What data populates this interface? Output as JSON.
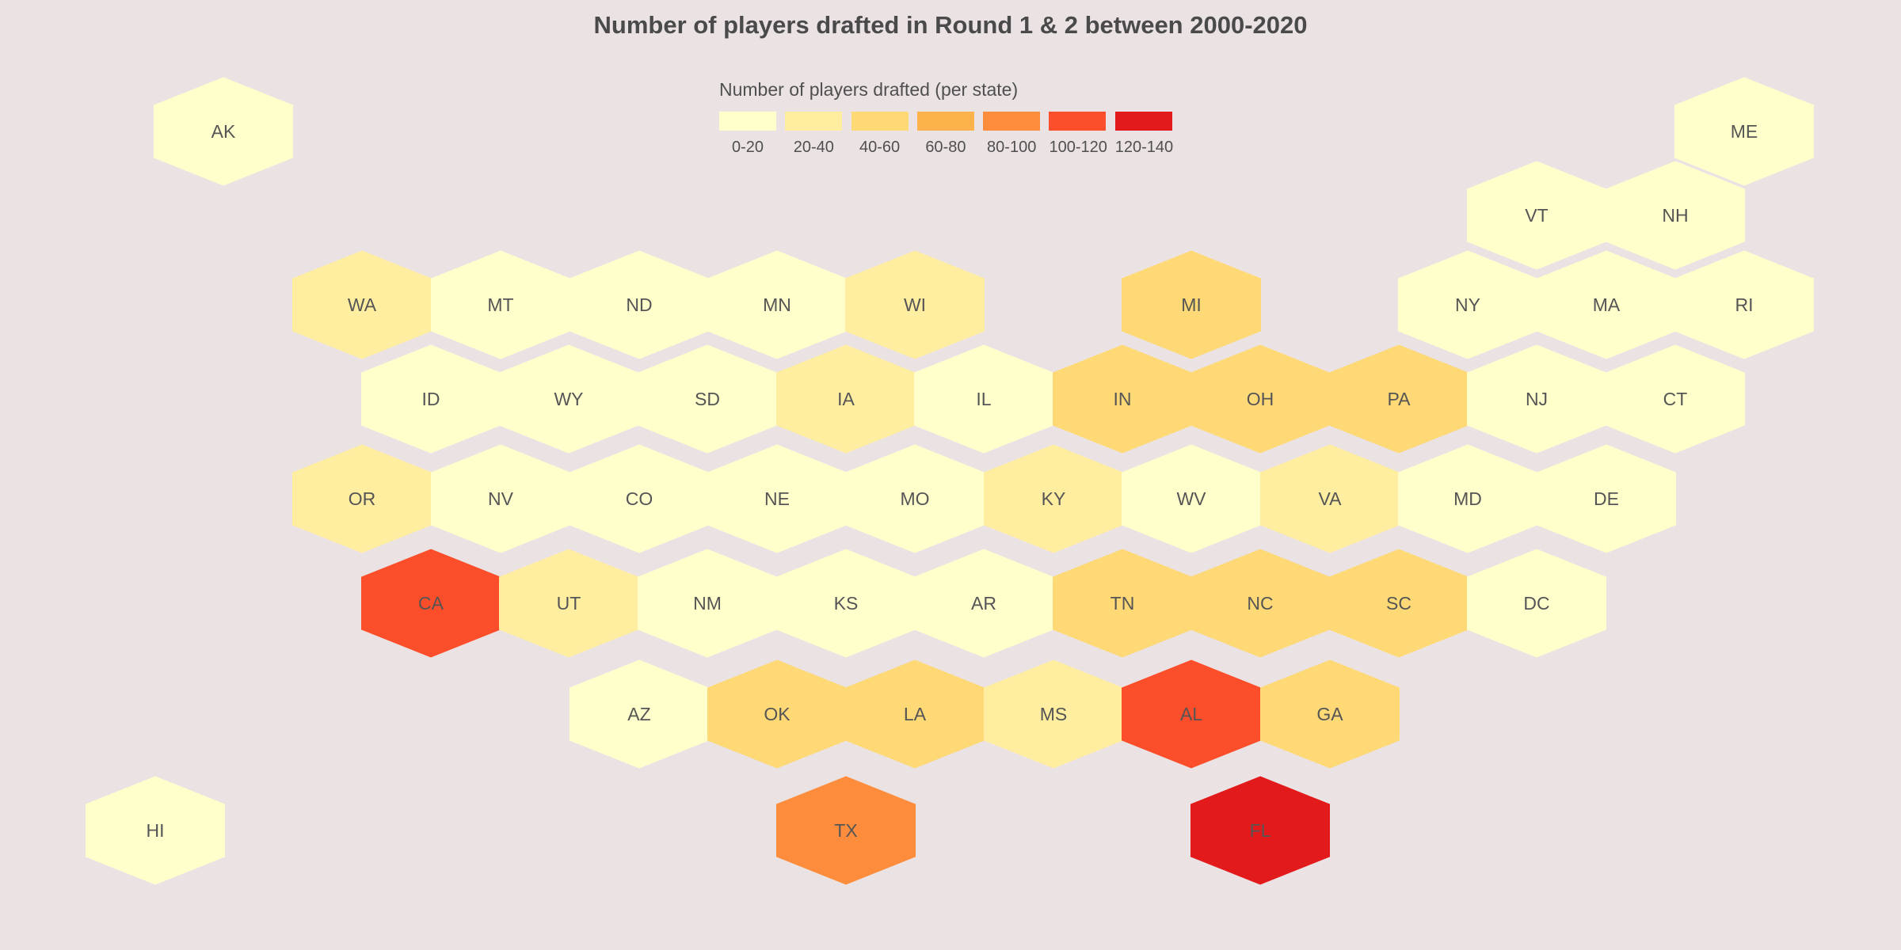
{
  "title": "Number of players drafted in Round 1 & 2 between 2000-2020",
  "legend": {
    "title": "Number of players drafted (per state)",
    "bins": [
      {
        "label": "0-20",
        "color": "#ffffcc"
      },
      {
        "label": "20-40",
        "color": "#ffeda0"
      },
      {
        "label": "40-60",
        "color": "#fed976"
      },
      {
        "label": "60-80",
        "color": "#feb24c"
      },
      {
        "label": "80-100",
        "color": "#fd8d3c"
      },
      {
        "label": "100-120",
        "color": "#fc4e2a"
      },
      {
        "label": "120-140",
        "color": "#e31a1c"
      }
    ]
  },
  "states": [
    {
      "abbr": "AK",
      "bin": 0
    },
    {
      "abbr": "ME",
      "bin": 0
    },
    {
      "abbr": "VT",
      "bin": 0
    },
    {
      "abbr": "NH",
      "bin": 0
    },
    {
      "abbr": "WA",
      "bin": 1
    },
    {
      "abbr": "MT",
      "bin": 0
    },
    {
      "abbr": "ND",
      "bin": 0
    },
    {
      "abbr": "MN",
      "bin": 0
    },
    {
      "abbr": "WI",
      "bin": 1
    },
    {
      "abbr": "MI",
      "bin": 2
    },
    {
      "abbr": "NY",
      "bin": 0
    },
    {
      "abbr": "MA",
      "bin": 0
    },
    {
      "abbr": "RI",
      "bin": 0
    },
    {
      "abbr": "ID",
      "bin": 0
    },
    {
      "abbr": "WY",
      "bin": 0
    },
    {
      "abbr": "SD",
      "bin": 0
    },
    {
      "abbr": "IA",
      "bin": 1
    },
    {
      "abbr": "IL",
      "bin": 0
    },
    {
      "abbr": "IN",
      "bin": 2
    },
    {
      "abbr": "OH",
      "bin": 2
    },
    {
      "abbr": "PA",
      "bin": 2
    },
    {
      "abbr": "NJ",
      "bin": 0
    },
    {
      "abbr": "CT",
      "bin": 0
    },
    {
      "abbr": "OR",
      "bin": 1
    },
    {
      "abbr": "NV",
      "bin": 0
    },
    {
      "abbr": "CO",
      "bin": 0
    },
    {
      "abbr": "NE",
      "bin": 0
    },
    {
      "abbr": "MO",
      "bin": 0
    },
    {
      "abbr": "KY",
      "bin": 1
    },
    {
      "abbr": "WV",
      "bin": 0
    },
    {
      "abbr": "VA",
      "bin": 1
    },
    {
      "abbr": "MD",
      "bin": 0
    },
    {
      "abbr": "DE",
      "bin": 0
    },
    {
      "abbr": "CA",
      "bin": 5
    },
    {
      "abbr": "UT",
      "bin": 1
    },
    {
      "abbr": "NM",
      "bin": 0
    },
    {
      "abbr": "KS",
      "bin": 0
    },
    {
      "abbr": "AR",
      "bin": 0
    },
    {
      "abbr": "TN",
      "bin": 2
    },
    {
      "abbr": "NC",
      "bin": 2
    },
    {
      "abbr": "SC",
      "bin": 2
    },
    {
      "abbr": "DC",
      "bin": 0
    },
    {
      "abbr": "AZ",
      "bin": 0
    },
    {
      "abbr": "OK",
      "bin": 2
    },
    {
      "abbr": "LA",
      "bin": 2
    },
    {
      "abbr": "MS",
      "bin": 1
    },
    {
      "abbr": "AL",
      "bin": 5
    },
    {
      "abbr": "GA",
      "bin": 2
    },
    {
      "abbr": "HI",
      "bin": 0
    },
    {
      "abbr": "TX",
      "bin": 4
    },
    {
      "abbr": "FL",
      "bin": 6
    }
  ]
}
